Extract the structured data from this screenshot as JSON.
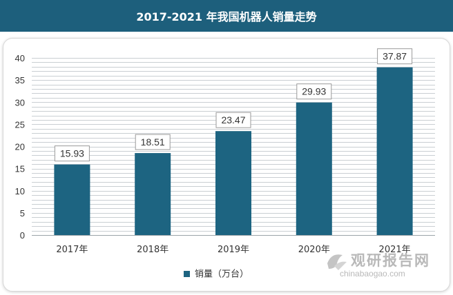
{
  "header": {
    "title": "2017-2021 年我国机器人销量走势"
  },
  "chart_data": {
    "type": "bar",
    "categories": [
      "2017年",
      "2018年",
      "2019年",
      "2020年",
      "2021年"
    ],
    "values": [
      15.93,
      18.51,
      23.47,
      29.93,
      37.87
    ],
    "data_labels": [
      "15.93",
      "18.51",
      "23.47",
      "29.93",
      "37.87"
    ],
    "title": "2017-2021 年我国机器人销量走势",
    "xlabel": "",
    "ylabel": "",
    "ylim": [
      0,
      40
    ],
    "yticks": [
      0,
      5,
      10,
      15,
      20,
      25,
      30,
      35,
      40
    ],
    "grid": true,
    "series": [
      {
        "name": "销量（万台）",
        "values": [
          15.93,
          18.51,
          23.47,
          29.93,
          37.87
        ]
      }
    ],
    "legend": {
      "placement": "bottom",
      "entries": [
        "销量（万台）"
      ]
    },
    "colors": {
      "bar": "#1d6481",
      "grid": "#c9ced2",
      "plot_bg": "#ffffff"
    }
  },
  "watermark": {
    "brand": "观研报告网",
    "site": "chinabaogao.com"
  }
}
